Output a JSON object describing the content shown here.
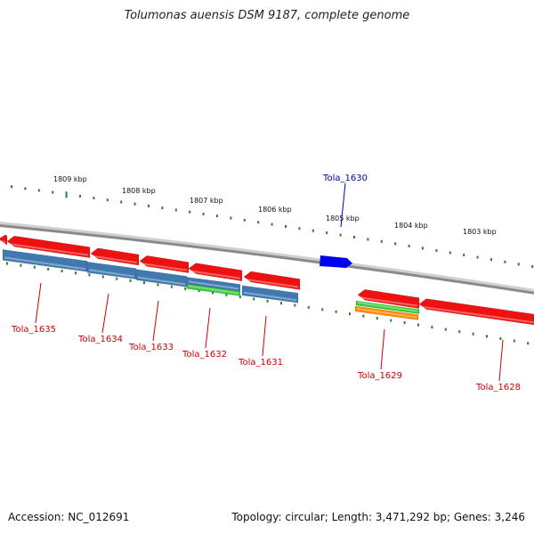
{
  "title": "Tolumonas auensis DSM 9187, complete genome",
  "footer": {
    "accession": "Accession: NC_012691",
    "summary": "Topology: circular; Length: 3,471,292 bp; Genes: 3,246"
  },
  "colors": {
    "backbone": "#8a8a8a",
    "tick": "#2e7d2e",
    "forward_gene": "#ee1111",
    "reverse_gene": "#3f79b0",
    "green_feature": "#33cc33",
    "orange_feature": "#ff8800",
    "highlight_gene": "#0000ee",
    "label_red": "#cc0000",
    "label_blue": "#0000aa"
  },
  "scale_labels": [
    {
      "text": "1809 kbp",
      "kbp": 1809
    },
    {
      "text": "1808 kbp",
      "kbp": 1808
    },
    {
      "text": "1807 kbp",
      "kbp": 1807
    },
    {
      "text": "1806 kbp",
      "kbp": 1806
    },
    {
      "text": "1805 kbp",
      "kbp": 1805
    },
    {
      "text": "1804 kbp",
      "kbp": 1804
    },
    {
      "text": "1803 kbp",
      "kbp": 1803
    }
  ],
  "gene_labels": [
    {
      "text": "Tola_1635",
      "color": "label_red"
    },
    {
      "text": "Tola_1634",
      "color": "label_red"
    },
    {
      "text": "Tola_1633",
      "color": "label_red"
    },
    {
      "text": "Tola_1632",
      "color": "label_red"
    },
    {
      "text": "Tola_1631",
      "color": "label_red"
    },
    {
      "text": "Tola_1630",
      "color": "label_blue"
    },
    {
      "text": "Tola_1629",
      "color": "label_red"
    },
    {
      "text": "Tola_1628",
      "color": "label_red"
    }
  ]
}
